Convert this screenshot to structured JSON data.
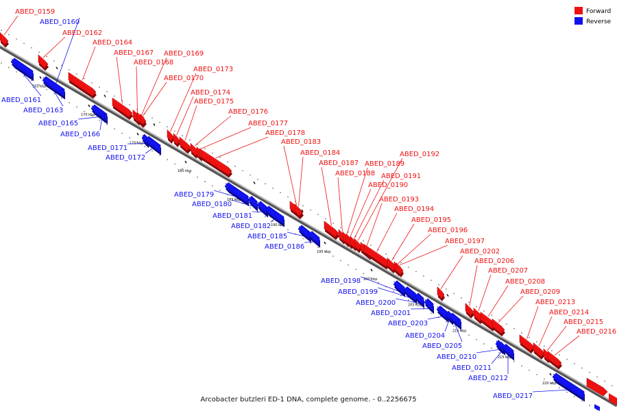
{
  "caption": "Arcobacter butzleri ED-1 DNA, complete genome. - 0..2256675",
  "legend": [
    {
      "label": "Forward",
      "color": "#ee1111"
    },
    {
      "label": "Reverse",
      "color": "#1111ee"
    }
  ],
  "colors": {
    "forward": "#ee1111",
    "reverse": "#1111ee",
    "backbone": "#888888"
  },
  "ticks": [
    "165 kbp",
    "170 kbp",
    "175 kbp",
    "180 kbp",
    "185 kbp",
    "190 kbp",
    "195 kbp",
    "200 kbp",
    "205 kbp",
    "210 kbp",
    "215 kbp",
    "220 kbp"
  ],
  "genes": [
    {
      "id": "ABED_0159",
      "strand": "forward"
    },
    {
      "id": "ABED_0160",
      "strand": "reverse"
    },
    {
      "id": "ABED_0161",
      "strand": "reverse"
    },
    {
      "id": "ABED_0162",
      "strand": "forward"
    },
    {
      "id": "ABED_0163",
      "strand": "reverse"
    },
    {
      "id": "ABED_0164",
      "strand": "forward"
    },
    {
      "id": "ABED_0165",
      "strand": "reverse"
    },
    {
      "id": "ABED_0166",
      "strand": "reverse"
    },
    {
      "id": "ABED_0167",
      "strand": "forward"
    },
    {
      "id": "ABED_0168",
      "strand": "forward"
    },
    {
      "id": "ABED_0169",
      "strand": "forward"
    },
    {
      "id": "ABED_0170",
      "strand": "forward"
    },
    {
      "id": "ABED_0171",
      "strand": "reverse"
    },
    {
      "id": "ABED_0172",
      "strand": "reverse"
    },
    {
      "id": "ABED_0173",
      "strand": "forward"
    },
    {
      "id": "ABED_0174",
      "strand": "forward"
    },
    {
      "id": "ABED_0175",
      "strand": "forward"
    },
    {
      "id": "ABED_0176",
      "strand": "forward"
    },
    {
      "id": "ABED_0177",
      "strand": "forward"
    },
    {
      "id": "ABED_0178",
      "strand": "forward"
    },
    {
      "id": "ABED_0179",
      "strand": "reverse"
    },
    {
      "id": "ABED_0180",
      "strand": "reverse"
    },
    {
      "id": "ABED_0181",
      "strand": "reverse"
    },
    {
      "id": "ABED_0182",
      "strand": "reverse"
    },
    {
      "id": "ABED_0183",
      "strand": "forward"
    },
    {
      "id": "ABED_0184",
      "strand": "forward"
    },
    {
      "id": "ABED_0185",
      "strand": "reverse"
    },
    {
      "id": "ABED_0186",
      "strand": "reverse"
    },
    {
      "id": "ABED_0187",
      "strand": "forward"
    },
    {
      "id": "ABED_0188",
      "strand": "forward"
    },
    {
      "id": "ABED_0189",
      "strand": "forward"
    },
    {
      "id": "ABED_0190",
      "strand": "forward"
    },
    {
      "id": "ABED_0191",
      "strand": "forward"
    },
    {
      "id": "ABED_0192",
      "strand": "forward"
    },
    {
      "id": "ABED_0193",
      "strand": "forward"
    },
    {
      "id": "ABED_0194",
      "strand": "forward"
    },
    {
      "id": "ABED_0195",
      "strand": "forward"
    },
    {
      "id": "ABED_0196",
      "strand": "forward"
    },
    {
      "id": "ABED_0197",
      "strand": "forward"
    },
    {
      "id": "ABED_0198",
      "strand": "reverse"
    },
    {
      "id": "ABED_0199",
      "strand": "reverse"
    },
    {
      "id": "ABED_0200",
      "strand": "reverse"
    },
    {
      "id": "ABED_0201",
      "strand": "reverse"
    },
    {
      "id": "ABED_0202",
      "strand": "forward"
    },
    {
      "id": "ABED_0203",
      "strand": "reverse"
    },
    {
      "id": "ABED_0204",
      "strand": "reverse"
    },
    {
      "id": "ABED_0205",
      "strand": "reverse"
    },
    {
      "id": "ABED_0206",
      "strand": "forward"
    },
    {
      "id": "ABED_0207",
      "strand": "forward"
    },
    {
      "id": "ABED_0208",
      "strand": "forward"
    },
    {
      "id": "ABED_0209",
      "strand": "forward"
    },
    {
      "id": "ABED_0210",
      "strand": "reverse"
    },
    {
      "id": "ABED_0211",
      "strand": "reverse"
    },
    {
      "id": "ABED_0212",
      "strand": "reverse"
    },
    {
      "id": "ABED_0213",
      "strand": "forward"
    },
    {
      "id": "ABED_0214",
      "strand": "forward"
    },
    {
      "id": "ABED_0215",
      "strand": "forward"
    },
    {
      "id": "ABED_0216",
      "strand": "forward"
    },
    {
      "id": "ABED_0217",
      "strand": "reverse"
    }
  ]
}
